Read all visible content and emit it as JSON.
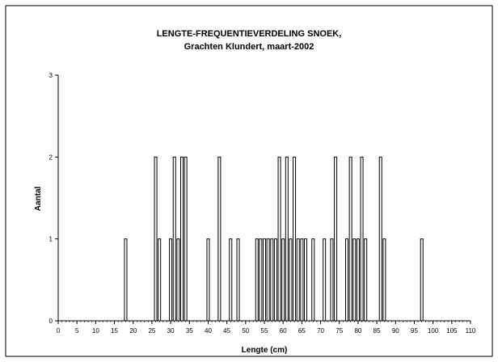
{
  "chart_data": {
    "type": "bar",
    "title": "LENGTE-FREQUENTIEVERDELING SNOEK,",
    "subtitle": "Grachten Klundert, maart-2002",
    "xlabel": "Lengte (cm)",
    "ylabel": "Aantal",
    "xlim": [
      0,
      110
    ],
    "ylim": [
      0,
      3
    ],
    "xticks": [
      0,
      5,
      10,
      15,
      20,
      25,
      30,
      35,
      40,
      45,
      50,
      55,
      60,
      65,
      70,
      75,
      80,
      85,
      90,
      95,
      100,
      105,
      110
    ],
    "yticks": [
      0,
      1,
      2,
      3
    ],
    "grid": false,
    "legend": "none",
    "bar_color": "#ffffff",
    "bar_edge_color": "#000000",
    "x": [
      18,
      26,
      27,
      30,
      31,
      32,
      33,
      34,
      40,
      43,
      46,
      48,
      53,
      54,
      55,
      56,
      57,
      58,
      59,
      60,
      61,
      62,
      63,
      64,
      65,
      66,
      68,
      71,
      73,
      74,
      77,
      78,
      79,
      80,
      81,
      82,
      86,
      87,
      97
    ],
    "values": [
      1,
      2,
      1,
      1,
      2,
      1,
      2,
      2,
      1,
      2,
      1,
      1,
      1,
      1,
      1,
      1,
      1,
      1,
      2,
      1,
      2,
      1,
      2,
      1,
      1,
      1,
      1,
      1,
      1,
      2,
      1,
      2,
      1,
      1,
      2,
      1,
      2,
      1,
      1
    ]
  }
}
